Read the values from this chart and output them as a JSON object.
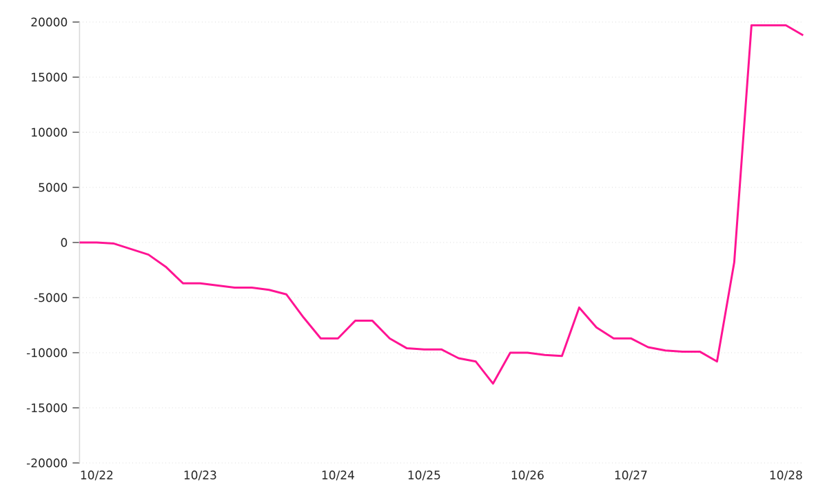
{
  "chart_data": {
    "type": "line",
    "categories": [
      null,
      "10/22",
      null,
      null,
      null,
      null,
      null,
      "10/23",
      null,
      null,
      null,
      null,
      null,
      null,
      null,
      "10/24",
      null,
      null,
      null,
      null,
      "10/25",
      null,
      null,
      null,
      null,
      null,
      "10/26",
      null,
      null,
      null,
      null,
      null,
      "10/27",
      null,
      null,
      null,
      null,
      null,
      null,
      null,
      null,
      "10/28",
      null
    ],
    "series": [
      {
        "color": "#ff1493",
        "values": [
          0,
          0,
          -100,
          -600,
          -1100,
          -2200,
          -3700,
          -3700,
          -3900,
          -4100,
          -4100,
          -4300,
          -4700,
          -6800,
          -8700,
          -8700,
          -7100,
          -7100,
          -8700,
          -9600,
          -9700,
          -9700,
          -10500,
          -10800,
          -12800,
          -10000,
          -10000,
          -10200,
          -10300,
          -5900,
          -7700,
          -8700,
          -8700,
          -9500,
          -9800,
          -9900,
          -9900,
          -10800,
          -1800,
          19700,
          19700,
          19700,
          18800
        ]
      }
    ],
    "ylim": [
      -20000,
      20000
    ],
    "yticks": [
      -20000,
      -15000,
      -10000,
      -5000,
      0,
      5000,
      10000,
      15000,
      20000
    ],
    "grid": "y",
    "legend": false,
    "marker": "none",
    "line_style": "solid"
  }
}
